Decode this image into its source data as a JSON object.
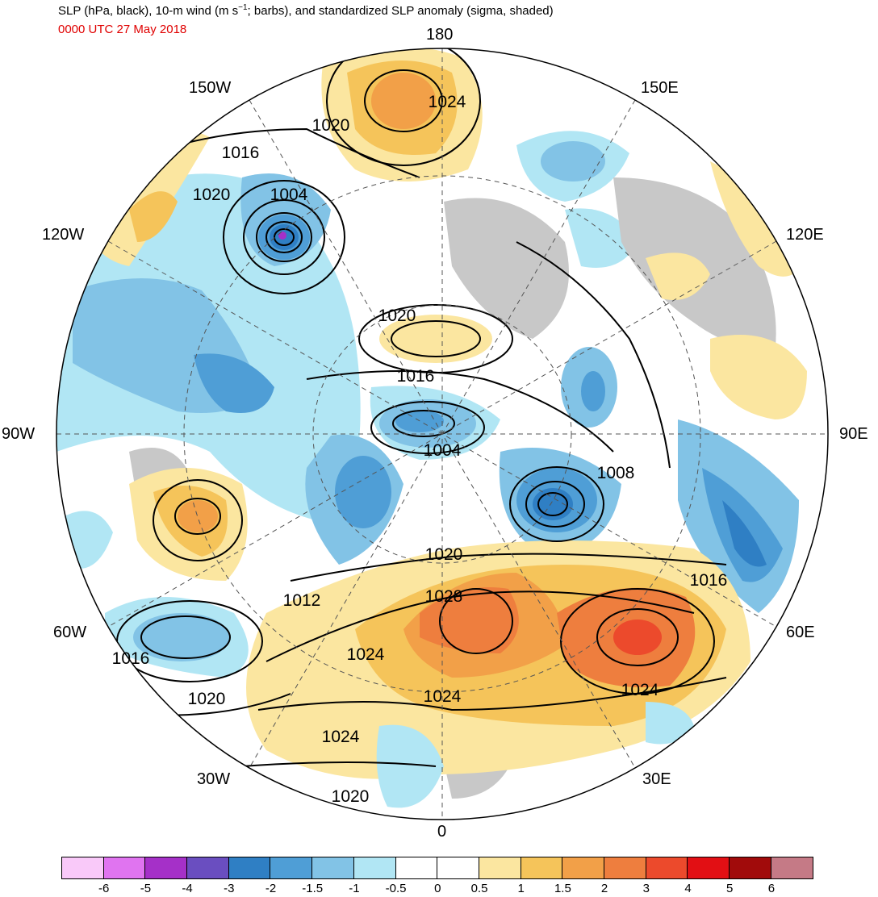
{
  "header": {
    "title_pre": "SLP (hPa, black), 10-m wind (m s",
    "title_sup": "−1",
    "title_post": "; barbs), and standardized SLP anomaly (sigma, shaded)",
    "datetime": "0000 UTC 27 May 2018",
    "datetime_color": "#e00000"
  },
  "map": {
    "projection": "north-polar-stereographic",
    "longitude_labels": [
      {
        "id": "lon-180",
        "text": "180"
      },
      {
        "id": "lon-150w",
        "text": "150W"
      },
      {
        "id": "lon-150e",
        "text": "150E"
      },
      {
        "id": "lon-120w",
        "text": "120W"
      },
      {
        "id": "lon-120e",
        "text": "120E"
      },
      {
        "id": "lon-90w",
        "text": "90W"
      },
      {
        "id": "lon-90e",
        "text": "90E"
      },
      {
        "id": "lon-60w",
        "text": "60W"
      },
      {
        "id": "lon-60e",
        "text": "60E"
      },
      {
        "id": "lon-30w",
        "text": "30W"
      },
      {
        "id": "lon-30e",
        "text": "30E"
      },
      {
        "id": "lon-0",
        "text": "0"
      }
    ],
    "isobar_labels": [
      "1024",
      "1020",
      "1016",
      "1020",
      "1004",
      "1020",
      "1016",
      "1004",
      "1008",
      "1020",
      "1028",
      "1016",
      "1012",
      "1024",
      "1016",
      "1020",
      "1024",
      "1024",
      "1024",
      "1020"
    ]
  },
  "colorbar": {
    "colors": [
      "#f9c9f9",
      "#e074f0",
      "#a530c8",
      "#6a4ec0",
      "#2f7fc4",
      "#4f9ed6",
      "#82c3e6",
      "#b1e6f4",
      "#ffffff",
      "#ffffff",
      "#fbe6a0",
      "#f5c45a",
      "#f2a048",
      "#ee7e3e",
      "#ec4a2c",
      "#e20f14",
      "#a10b0b",
      "#c57a86"
    ],
    "labels": [
      "-6",
      "-5",
      "-4",
      "-3",
      "-2",
      "-1.5",
      "-1",
      "-0.5",
      "0",
      "0.5",
      "1",
      "1.5",
      "2",
      "3",
      "4",
      "5",
      "6"
    ]
  }
}
